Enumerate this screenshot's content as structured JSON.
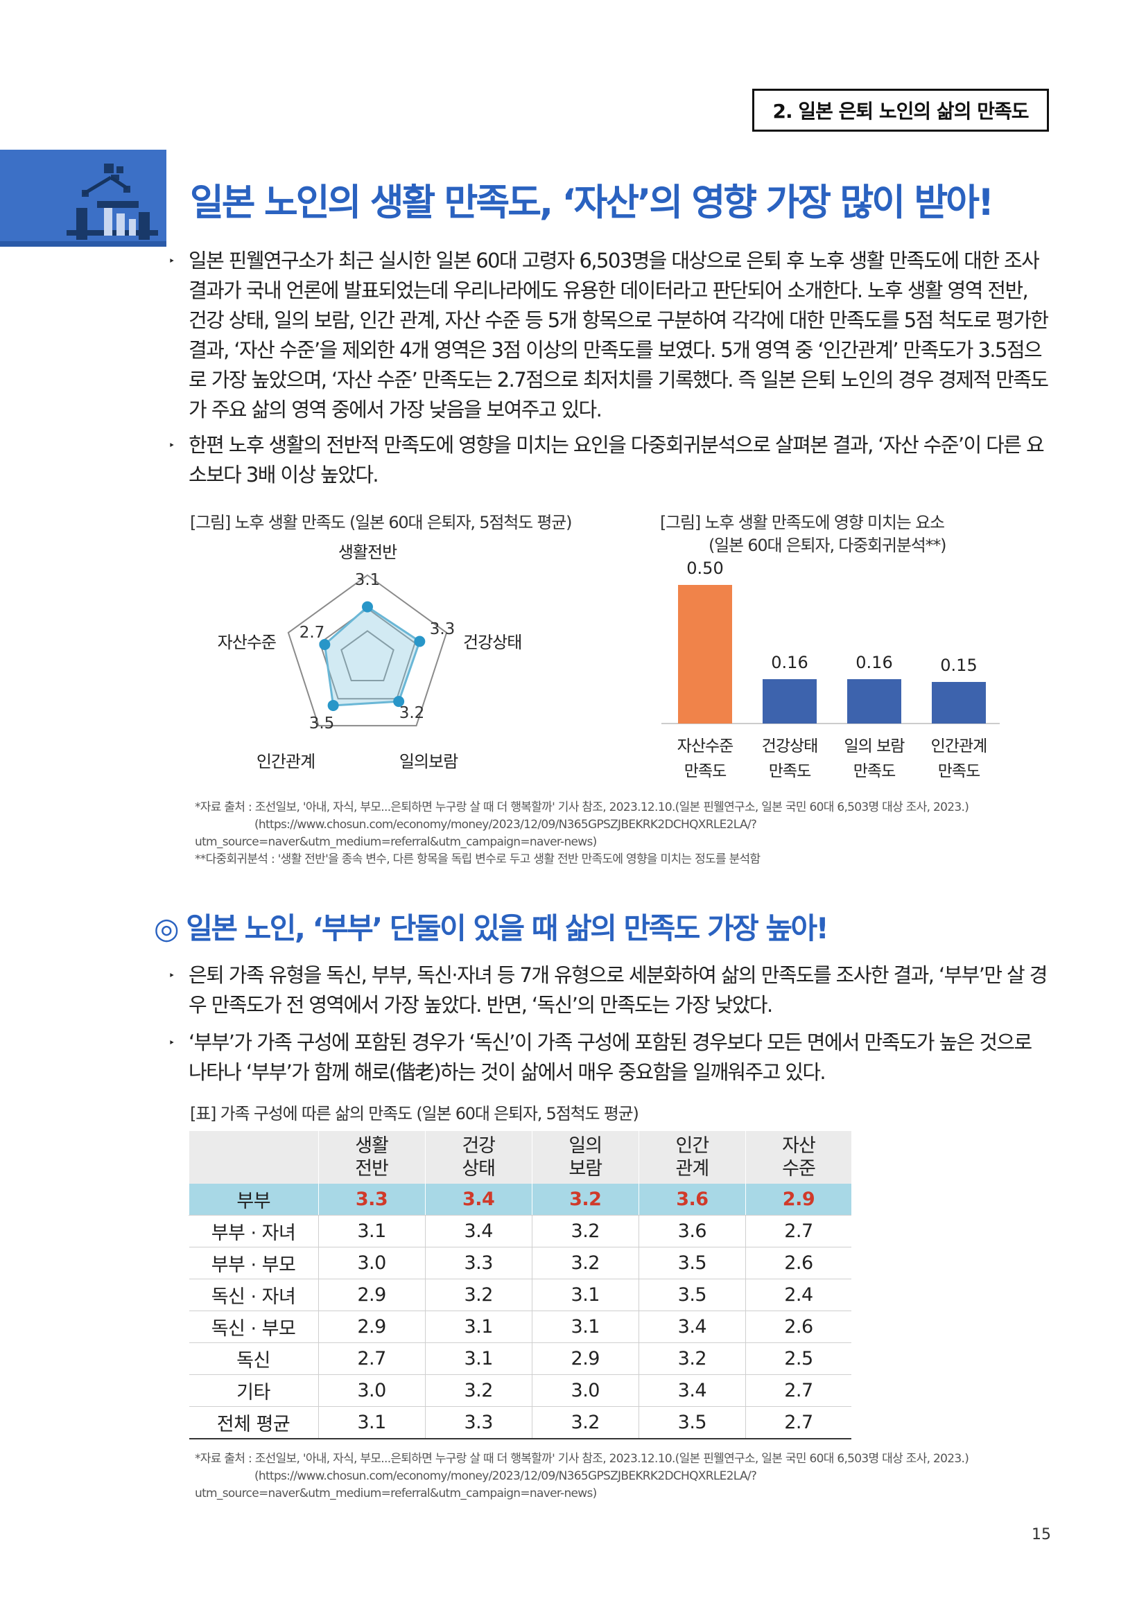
{
  "header": {
    "section_tag": "2. 일본 은퇴 노인의 삶의 만족도"
  },
  "colors": {
    "accent_blue": "#2a62c0",
    "block_blue": "#3c70c6",
    "bar_orange": "#f0834a",
    "bar_blue": "#3d63ad",
    "radar_blue": "#2896c8",
    "table_highlight": "#a8d8e6",
    "value_red": "#d03a2a"
  },
  "icons": {
    "section_icon": "chart-person-icon"
  },
  "section1": {
    "title": "일본 노인의 생활 만족도, ‘자산’의 영향 가장 많이 받아!",
    "bullets": [
      "일본 핀웰연구소가 최근 실시한 일본 60대 고령자 6,503명을 대상으로 은퇴 후 노후 생활 만족도에 대한 조사 결과가 국내 언론에 발표되었는데 우리나라에도 유용한 데이터라고 판단되어 소개한다. 노후 생활 영역 전반, 건강 상태, 일의 보람, 인간 관계, 자산 수준 등 5개 항목으로 구분하여 각각에 대한 만족도를 5점 척도로 평가한 결과, ‘자산 수준’을 제외한 4개 영역은 3점 이상의 만족도를 보였다. 5개 영역 중 ‘인간관계’ 만족도가 3.5점으로 가장 높았으며, ‘자산 수준’ 만족도는 2.7점으로 최저치를 기록했다. 즉 일본 은퇴 노인의 경우 경제적 만족도가 주요 삶의 영역 중에서 가장 낮음을 보여주고 있다.",
      "한편 노후 생활의 전반적 만족도에 영향을 미치는 요인을 다중회귀분석으로 살펴본 결과, ‘자산 수준’이 다른 요소보다 3배 이상 높았다."
    ],
    "bullet_mark": "‣"
  },
  "chart_data": [
    {
      "type": "radar",
      "title": "[그림] 노후 생활 만족도 (일본 60대 은퇴자, 5점척도 평균)",
      "categories": [
        "생활전반",
        "건강상태",
        "일의보람",
        "인간관계",
        "자산수준"
      ],
      "values": [
        3.1,
        3.3,
        3.2,
        3.5,
        2.7
      ],
      "value_labels": [
        "3.1",
        "3.3",
        "3.2",
        "3.5",
        "2.7"
      ],
      "range": [
        0,
        5
      ]
    },
    {
      "type": "bar",
      "title_line1": "[그림] 노후 생활 만족도에 영향 미치는 요소",
      "title_line2": "(일본 60대 은퇴자, 다중회귀분석**)",
      "categories": [
        [
          "자산수준",
          "만족도"
        ],
        [
          "건강상태",
          "만족도"
        ],
        [
          "일의 보람",
          "만족도"
        ],
        [
          "인간관계",
          "만족도"
        ]
      ],
      "values": [
        0.5,
        0.16,
        0.16,
        0.15
      ],
      "value_labels": [
        "0.50",
        "0.16",
        "0.16",
        "0.15"
      ],
      "ylim": [
        0,
        0.55
      ]
    }
  ],
  "notes1": [
    "*자료 출처 : 조선일보, '아내, 자식, 부모...은퇴하면 누구랑 살 때 더 행복할까' 기사 참조, 2023.12.10.(일본 핀웰연구소, 일본 국민 60대 6,503명 대상 조사, 2023.)",
    "(https://www.chosun.com/economy/money/2023/12/09/N365GPSZJBEKRK2DCHQXRLE2LA/?",
    "utm_source=naver&utm_medium=referral&utm_campaign=naver-news)",
    "**다중회귀분석 : '생활 전반'을 종속 변수, 다른 항목을 독립 변수로 두고 생활 전반 만족도에 영향을 미치는 정도를 분석함"
  ],
  "section2": {
    "title": "◎ 일본 노인, ‘부부’ 단둘이 있을 때 삶의 만족도 가장 높아!",
    "bullets": [
      "은퇴 가족 유형을 독신, 부부, 독신·자녀 등 7개 유형으로 세분화하여 삶의 만족도를 조사한 결과, ‘부부’만 살 경우 만족도가 전 영역에서 가장 높았다. 반면, ‘독신’의 만족도는 가장 낮았다.",
      "‘부부’가 가족 구성에 포함된 경우가 ‘독신’이 가족 구성에 포함된 경우보다 모든 면에서 만족도가 높은 것으로 나타나 ‘부부’가 함께 해로(偕老)하는 것이 삶에서 매우 중요함을 일깨워주고 있다."
    ]
  },
  "table": {
    "caption": "[표] 가족 구성에 따른 삶의 만족도 (일본 60대 은퇴자, 5점척도 평균)",
    "headers": [
      [
        "",
        ""
      ],
      [
        "생활",
        "전반"
      ],
      [
        "건강",
        "상태"
      ],
      [
        "일의",
        "보람"
      ],
      [
        "인간",
        "관계"
      ],
      [
        "자산",
        "수준"
      ]
    ],
    "rows": [
      [
        "부부",
        "3.3",
        "3.4",
        "3.2",
        "3.6",
        "2.9"
      ],
      [
        "부부 · 자녀",
        "3.1",
        "3.4",
        "3.2",
        "3.6",
        "2.7"
      ],
      [
        "부부 · 부모",
        "3.0",
        "3.3",
        "3.2",
        "3.5",
        "2.6"
      ],
      [
        "독신 · 자녀",
        "2.9",
        "3.2",
        "3.1",
        "3.5",
        "2.4"
      ],
      [
        "독신 · 부모",
        "2.9",
        "3.1",
        "3.1",
        "3.4",
        "2.6"
      ],
      [
        "독신",
        "2.7",
        "3.1",
        "2.9",
        "3.2",
        "2.5"
      ],
      [
        "기타",
        "3.0",
        "3.2",
        "3.0",
        "3.4",
        "2.7"
      ],
      [
        "전체 평균",
        "3.1",
        "3.3",
        "3.2",
        "3.5",
        "2.7"
      ]
    ]
  },
  "notes2": [
    "*자료 출처 : 조선일보, '아내, 자식, 부모...은퇴하면 누구랑 살 때 더 행복할까' 기사 참조, 2023.12.10.(일본 핀웰연구소, 일본 국민 60대 6,503명 대상 조사, 2023.)",
    "(https://www.chosun.com/economy/money/2023/12/09/N365GPSZJBEKRK2DCHQXRLE2LA/?",
    "utm_source=naver&utm_medium=referral&utm_campaign=naver-news)"
  ],
  "page_number": "15"
}
